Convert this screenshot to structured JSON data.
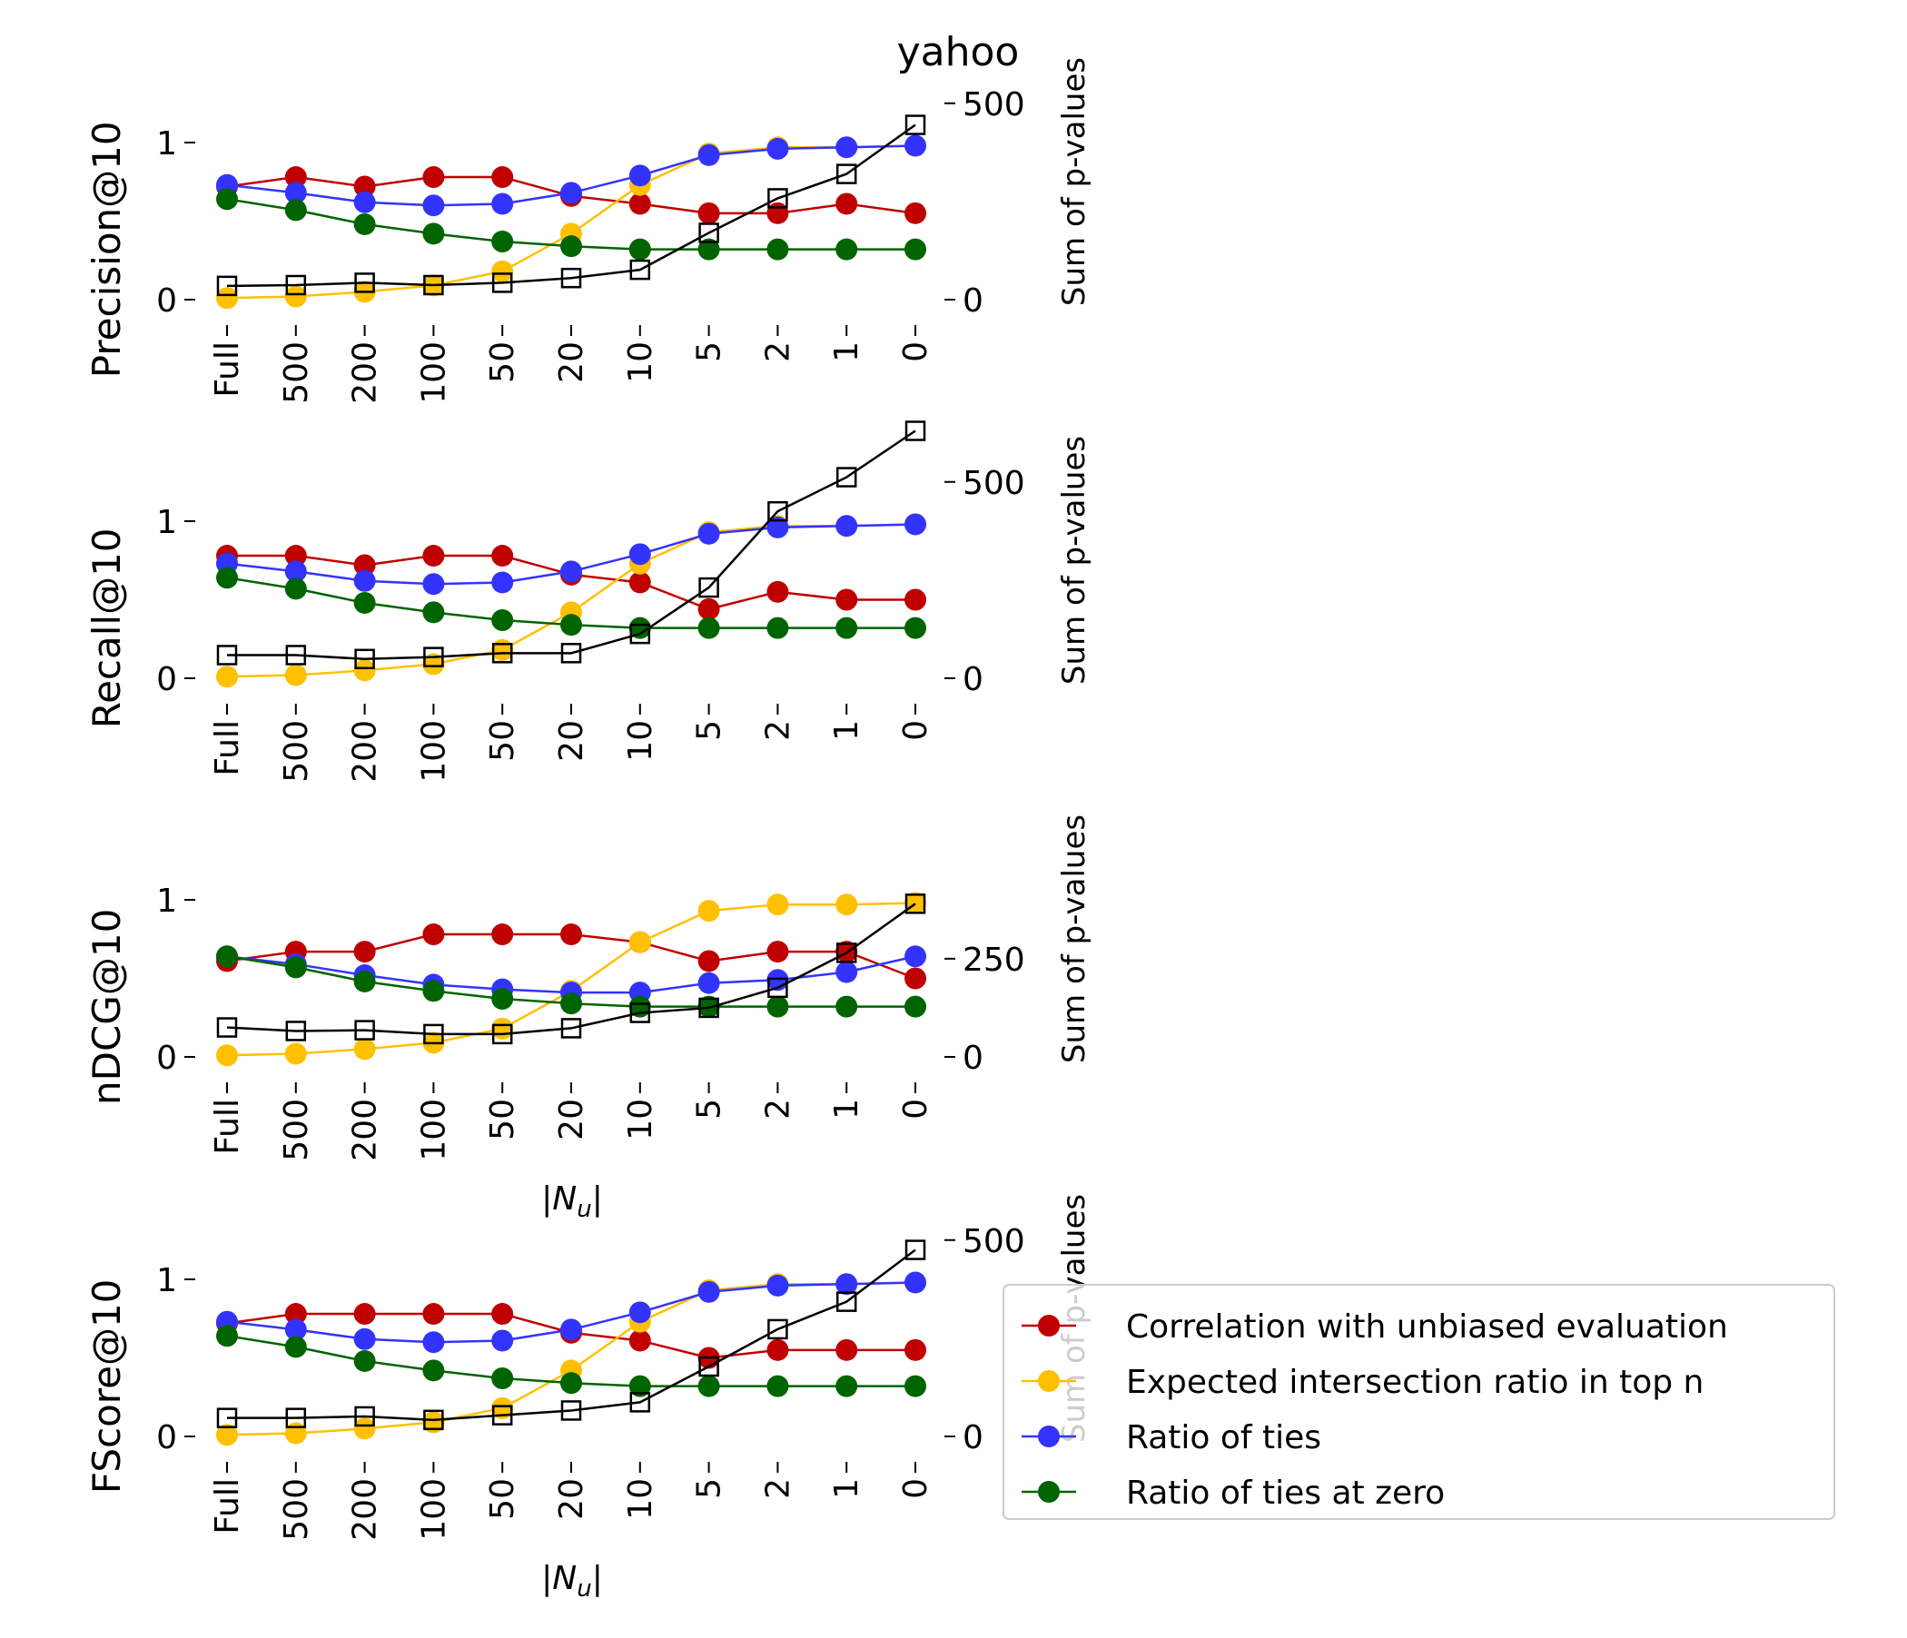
{
  "figure_title": "yahoo",
  "categories": [
    "Full",
    "500",
    "200",
    "100",
    "50",
    "20",
    "10",
    "5",
    "2",
    "1",
    "0"
  ],
  "xlabel": "|N_u|",
  "y2label": "Sum of p-values",
  "colors": {
    "correlation": "#c00000",
    "intersection": "#ffc000",
    "ties": "#3333ff",
    "ties_zero": "#006400",
    "pvalues": "#000000"
  },
  "legend": {
    "location": "lower-right",
    "entries": [
      {
        "label": "Correlation with unbiased evaluation",
        "color": "#c00000"
      },
      {
        "label": "Expected intersection ratio in top n",
        "color": "#ffc000"
      },
      {
        "label": "Ratio of ties",
        "color": "#3333ff"
      },
      {
        "label": "Ratio of ties at zero",
        "color": "#006400"
      }
    ]
  },
  "chart_data": [
    {
      "type": "line",
      "ylabel": "Precision@10",
      "ylim": [
        -0.2,
        1.3
      ],
      "yticks": [
        0,
        1
      ],
      "y2lim": [
        -80,
        520
      ],
      "y2ticks": [
        0,
        500
      ],
      "y2ticklabels": [
        "0",
        "500"
      ],
      "xlabel": "",
      "series": [
        {
          "key": "correlation",
          "values": [
            0.72,
            0.78,
            0.72,
            0.78,
            0.78,
            0.66,
            0.61,
            0.55,
            0.55,
            0.61,
            0.55
          ]
        },
        {
          "key": "intersection",
          "values": [
            0.01,
            0.02,
            0.05,
            0.09,
            0.18,
            0.42,
            0.73,
            0.93,
            0.97,
            0.97,
            0.98
          ]
        },
        {
          "key": "ties",
          "values": [
            0.73,
            0.68,
            0.62,
            0.6,
            0.61,
            0.68,
            0.79,
            0.92,
            0.96,
            0.97,
            0.98
          ]
        },
        {
          "key": "ties_zero",
          "values": [
            0.64,
            0.57,
            0.48,
            0.42,
            0.37,
            0.34,
            0.32,
            0.32,
            0.32,
            0.32,
            0.32
          ]
        },
        {
          "key": "pvalues",
          "axis": "right",
          "values": [
            35,
            37,
            43,
            37,
            43,
            55,
            76,
            170,
            258,
            320,
            445
          ]
        }
      ]
    },
    {
      "type": "line",
      "ylabel": "Recall@10",
      "ylim": [
        -0.2,
        1.3
      ],
      "yticks": [
        0,
        1
      ],
      "y2lim": [
        -80,
        520
      ],
      "y2ticks": [
        0,
        500
      ],
      "y2ticklabels": [
        "0",
        "500"
      ],
      "xlabel": "",
      "series": [
        {
          "key": "correlation",
          "values": [
            0.78,
            0.78,
            0.72,
            0.78,
            0.78,
            0.66,
            0.61,
            0.44,
            0.55,
            0.5,
            0.5
          ]
        },
        {
          "key": "intersection",
          "values": [
            0.01,
            0.02,
            0.05,
            0.09,
            0.18,
            0.42,
            0.73,
            0.93,
            0.97,
            0.97,
            0.98
          ]
        },
        {
          "key": "ties",
          "values": [
            0.73,
            0.68,
            0.62,
            0.6,
            0.61,
            0.68,
            0.79,
            0.92,
            0.96,
            0.97,
            0.98
          ]
        },
        {
          "key": "ties_zero",
          "values": [
            0.64,
            0.57,
            0.48,
            0.42,
            0.37,
            0.34,
            0.32,
            0.32,
            0.32,
            0.32,
            0.32
          ]
        },
        {
          "key": "pvalues",
          "axis": "right",
          "values": [
            59,
            59,
            49,
            54,
            64,
            64,
            113,
            231,
            425,
            512,
            630
          ]
        }
      ]
    },
    {
      "type": "line",
      "ylabel": "nDCG@10",
      "ylim": [
        -0.2,
        1.3
      ],
      "yticks": [
        0,
        1
      ],
      "y2lim": [
        -80,
        520
      ],
      "y2ticks": [
        0,
        250
      ],
      "y2ticklabels": [
        "0",
        "250"
      ],
      "xlabel": "|N_u|",
      "series": [
        {
          "key": "correlation",
          "values": [
            0.61,
            0.67,
            0.67,
            0.78,
            0.78,
            0.78,
            0.73,
            0.61,
            0.67,
            0.67,
            0.5
          ]
        },
        {
          "key": "intersection",
          "values": [
            0.01,
            0.02,
            0.05,
            0.09,
            0.18,
            0.42,
            0.73,
            0.93,
            0.97,
            0.97,
            0.98
          ]
        },
        {
          "key": "ties",
          "values": [
            0.64,
            0.59,
            0.52,
            0.46,
            0.43,
            0.41,
            0.41,
            0.47,
            0.49,
            0.54,
            0.64
          ]
        },
        {
          "key": "ties_zero",
          "values": [
            0.64,
            0.57,
            0.48,
            0.42,
            0.37,
            0.34,
            0.32,
            0.32,
            0.32,
            0.32,
            0.32
          ]
        },
        {
          "key": "pvalues",
          "axis": "right",
          "values": [
            75,
            66,
            68,
            58,
            58,
            73,
            112,
            125,
            176,
            265,
            390
          ]
        }
      ]
    },
    {
      "type": "line",
      "ylabel": "FScore@10",
      "ylim": [
        -0.2,
        1.3
      ],
      "yticks": [
        0,
        1
      ],
      "y2lim": [
        -80,
        520
      ],
      "y2ticks": [
        0,
        500
      ],
      "y2ticklabels": [
        "0",
        "500"
      ],
      "xlabel": "|N_u|",
      "series": [
        {
          "key": "correlation",
          "values": [
            0.72,
            0.78,
            0.78,
            0.78,
            0.78,
            0.66,
            0.61,
            0.5,
            0.55,
            0.55,
            0.55
          ]
        },
        {
          "key": "intersection",
          "values": [
            0.01,
            0.02,
            0.05,
            0.09,
            0.18,
            0.42,
            0.73,
            0.93,
            0.97,
            0.97,
            0.98
          ]
        },
        {
          "key": "ties",
          "values": [
            0.73,
            0.68,
            0.62,
            0.6,
            0.61,
            0.68,
            0.79,
            0.92,
            0.96,
            0.97,
            0.98
          ]
        },
        {
          "key": "ties_zero",
          "values": [
            0.64,
            0.57,
            0.48,
            0.42,
            0.37,
            0.34,
            0.32,
            0.32,
            0.32,
            0.32,
            0.32
          ]
        },
        {
          "key": "pvalues",
          "axis": "right",
          "values": [
            47,
            47,
            51,
            42,
            54,
            66,
            87,
            178,
            273,
            343,
            475
          ]
        }
      ]
    }
  ]
}
